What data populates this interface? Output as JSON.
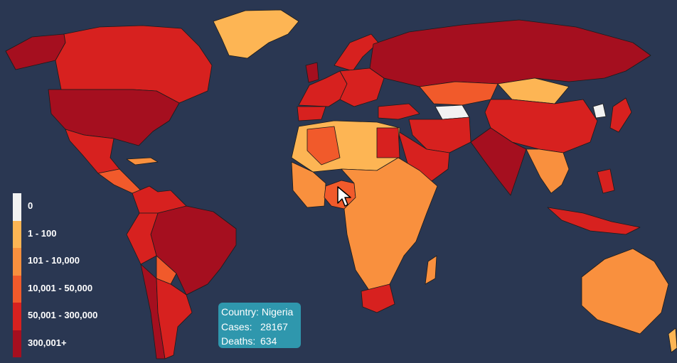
{
  "map": {
    "background": "#2a3752",
    "highlighted_country": "Nigeria",
    "legend": [
      {
        "label": "0",
        "color": "#f2f2f2"
      },
      {
        "label": "1 - 100",
        "color": "#fdb554"
      },
      {
        "label": "101 - 10,000",
        "color": "#f9903e"
      },
      {
        "label": "10,001 - 50,000",
        "color": "#f15a2b"
      },
      {
        "label": "50,001 - 300,000",
        "color": "#d7211f"
      },
      {
        "label": "300,001+",
        "color": "#a50f1f"
      }
    ]
  },
  "tooltip": {
    "country_label": "Country:",
    "country": "Nigeria",
    "cases_label": "Cases:",
    "cases": "28167",
    "deaths_label": "Deaths:",
    "deaths": "634"
  },
  "icons": {
    "cursor": "arrow-cursor-icon"
  }
}
